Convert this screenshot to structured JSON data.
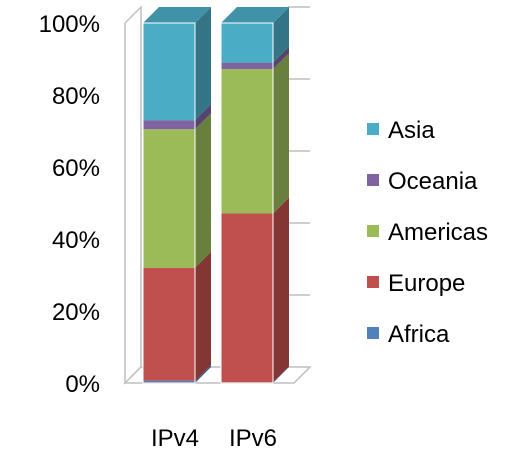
{
  "chart_data": {
    "type": "bar",
    "stacked": true,
    "percent": true,
    "three_d": true,
    "categories": [
      "IPv4",
      "IPv6"
    ],
    "series": [
      {
        "name": "Africa",
        "color": "#4F81BD",
        "values": [
          0.6,
          0.2
        ]
      },
      {
        "name": "Europe",
        "color": "#C0504D",
        "values": [
          31.4,
          46.9
        ]
      },
      {
        "name": "Americas",
        "color": "#9BBB59",
        "values": [
          38.5,
          40.1
        ]
      },
      {
        "name": "Oceania",
        "color": "#8064A2",
        "values": [
          2.5,
          1.8
        ]
      },
      {
        "name": "Asia",
        "color": "#4BACC6",
        "values": [
          27.0,
          11.0
        ]
      }
    ],
    "ylim": [
      0,
      100
    ],
    "yticks": [
      "0%",
      "20%",
      "40%",
      "60%",
      "80%",
      "100%"
    ],
    "grid": true,
    "legend": "right",
    "legend_order": [
      "Asia",
      "Oceania",
      "Americas",
      "Europe",
      "Africa"
    ]
  }
}
